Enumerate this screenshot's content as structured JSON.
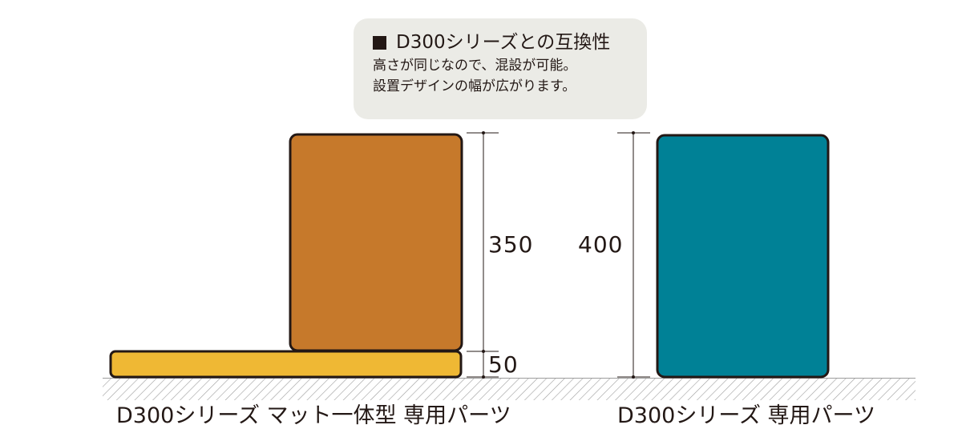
{
  "callout": {
    "title": "D300シリーズとの互換性",
    "line1": "高さが同じなので、混設が可能。",
    "line2": "設置デザインの幅が広がります。"
  },
  "dimensions": {
    "block_height": "350",
    "mat_height": "50",
    "pole_height": "400"
  },
  "captions": {
    "left": "D300シリーズ マット一体型 専用パーツ",
    "right": "D300シリーズ 専用パーツ"
  },
  "colors": {
    "mat": "#efb834",
    "block": "#c6792b",
    "pole": "#008196",
    "outline": "#231815",
    "callout_bg": "#ebebe6",
    "ground_hatch": "#9d9d9d"
  }
}
